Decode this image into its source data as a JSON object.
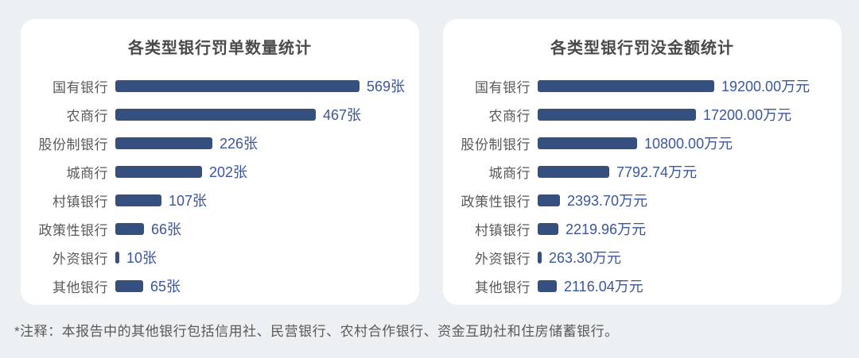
{
  "page": {
    "note": "*注释：本报告中的其他银行包括信用社、民营银行、农村合作银行、资金互助社和住房储蓄银行。"
  },
  "colors": {
    "background": "#edf0f3",
    "card": "#ffffff",
    "bar": "#35507e",
    "value_text": "#3a569f",
    "label_text": "#595959",
    "title_text": "#4a4a4a"
  },
  "chart_data": [
    {
      "type": "bar",
      "orientation": "horizontal",
      "title": "各类型银行罚单数量统计",
      "unit": "张",
      "legend": false,
      "grid": false,
      "categories": [
        "国有银行",
        "农商行",
        "股份制银行",
        "城商行",
        "村镇银行",
        "政策性银行",
        "外资银行",
        "其他银行"
      ],
      "values": [
        569,
        467,
        226,
        202,
        107,
        66,
        10,
        65
      ],
      "value_labels": [
        "569张",
        "467张",
        "226张",
        "202张",
        "107张",
        "66张",
        "10张",
        "65张"
      ],
      "xlim": [
        0,
        569
      ]
    },
    {
      "type": "bar",
      "orientation": "horizontal",
      "title": "各类型银行罚没金额统计",
      "unit": "万元",
      "legend": false,
      "grid": false,
      "categories": [
        "国有银行",
        "农商行",
        "股份制银行",
        "城商行",
        "政策性银行",
        "村镇银行",
        "外资银行",
        "其他银行"
      ],
      "values": [
        19200.0,
        17200.0,
        10800.0,
        7792.74,
        2393.7,
        2219.96,
        263.3,
        2116.04
      ],
      "value_labels": [
        "19200.00万元",
        "17200.00万元",
        "10800.00万元",
        "7792.74万元",
        "2393.70万元",
        "2219.96万元",
        "263.30万元",
        "2116.04万元"
      ],
      "xlim": [
        0,
        19200
      ]
    }
  ]
}
